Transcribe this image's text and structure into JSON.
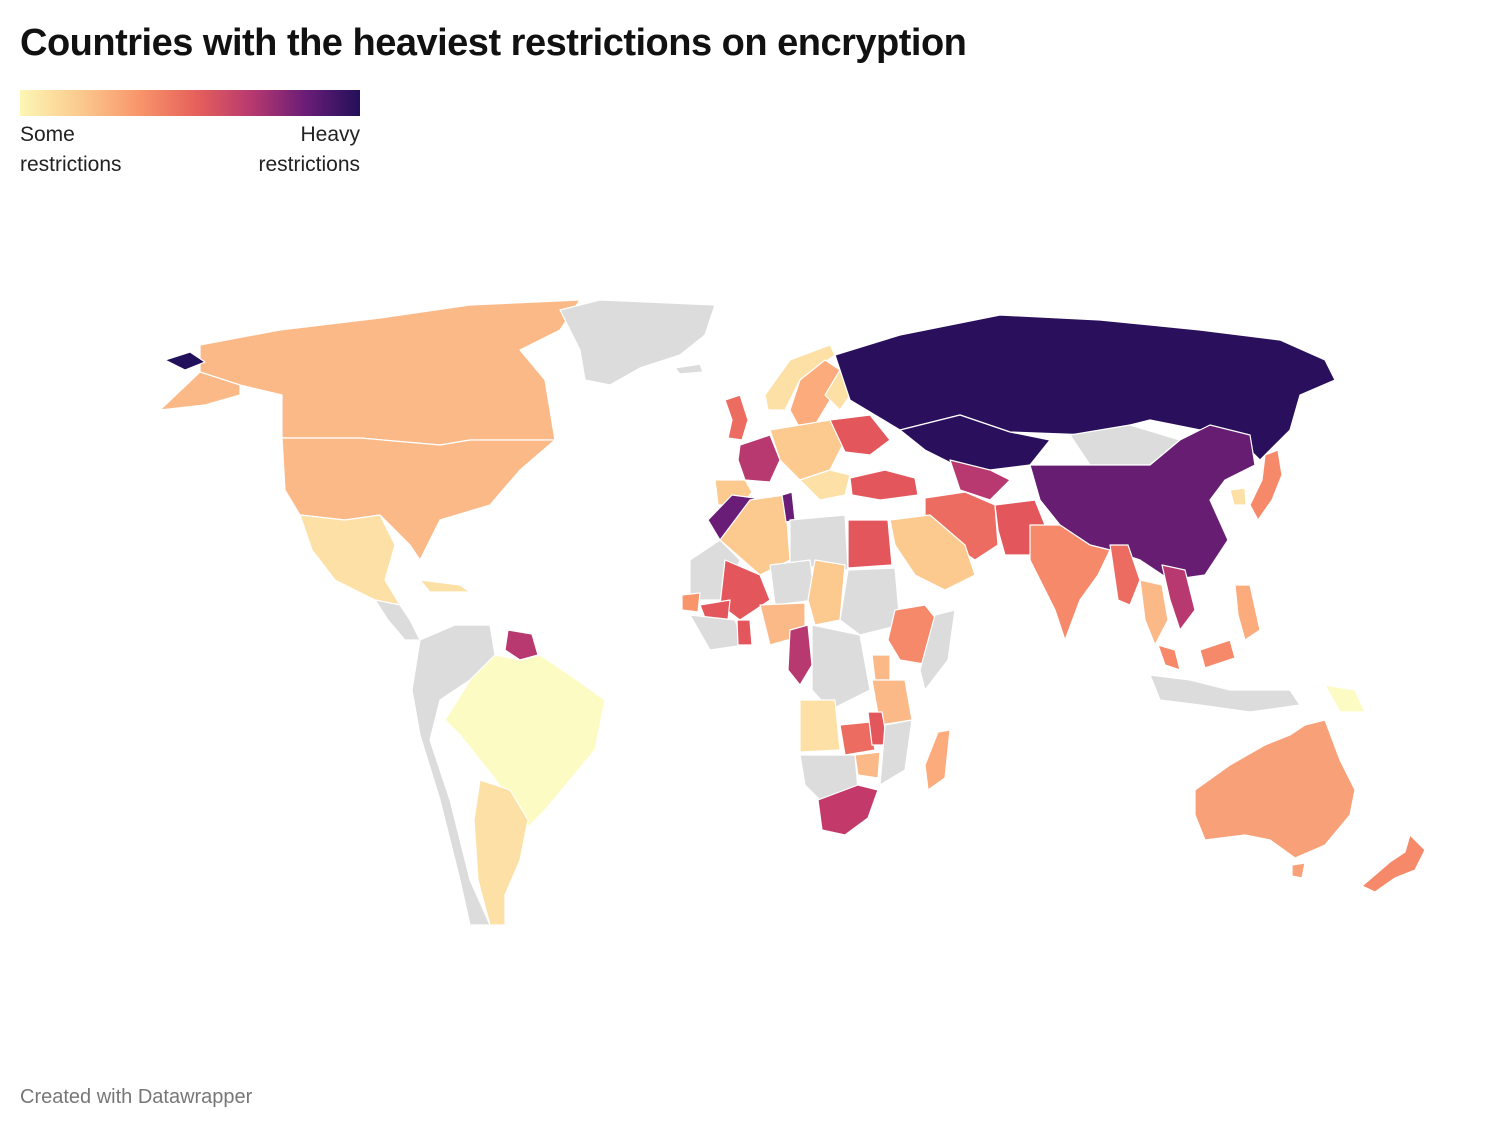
{
  "title": "Countries with the heaviest restrictions on encryption",
  "legend": {
    "low_label_line1": "Some",
    "low_label_line2": "restrictions",
    "high_label_line1": "Heavy",
    "high_label_line2": "restrictions",
    "colors": [
      "#fcf6b4",
      "#fbc98d",
      "#f8956a",
      "#e6605b",
      "#b7396f",
      "#6a1d77",
      "#23105a"
    ]
  },
  "no_data_color": "#dcdcdc",
  "credit": "Created with Datawrapper",
  "regions": [
    {
      "name": "Canada",
      "level": "medium-low",
      "color": "#fbb987"
    },
    {
      "name": "United States",
      "level": "medium-low",
      "color": "#fbb987"
    },
    {
      "name": "Alaska",
      "level": "medium-low",
      "color": "#fbb987"
    },
    {
      "name": "Mexico",
      "level": "low",
      "color": "#fde0a5"
    },
    {
      "name": "Greenland",
      "level": "no data",
      "color": "#dcdcdc"
    },
    {
      "name": "Brazil",
      "level": "lowest",
      "color": "#fdfbc4"
    },
    {
      "name": "Argentina",
      "level": "low",
      "color": "#fde0a5"
    },
    {
      "name": "Russia",
      "level": "highest",
      "color": "#2a105c"
    },
    {
      "name": "Kazakhstan",
      "level": "highest",
      "color": "#2a105c"
    },
    {
      "name": "China",
      "level": "very high",
      "color": "#661d72"
    },
    {
      "name": "Mongolia",
      "level": "no data",
      "color": "#dcdcdc"
    },
    {
      "name": "India",
      "level": "medium",
      "color": "#f6896a"
    },
    {
      "name": "Iran",
      "level": "medium-high",
      "color": "#ec6c61"
    },
    {
      "name": "Turkey",
      "level": "medium-high",
      "color": "#e2565c"
    },
    {
      "name": "Saudi Arabia",
      "level": "low",
      "color": "#fcc98e"
    },
    {
      "name": "Egypt",
      "level": "medium-high",
      "color": "#e2565c"
    },
    {
      "name": "Algeria",
      "level": "low",
      "color": "#fcc98e"
    },
    {
      "name": "Morocco",
      "level": "very high",
      "color": "#6a1d77"
    },
    {
      "name": "Mali",
      "level": "medium-high",
      "color": "#e2565c"
    },
    {
      "name": "Chad",
      "level": "low",
      "color": "#fcc98e"
    },
    {
      "name": "Ethiopia",
      "level": "medium",
      "color": "#f6896a"
    },
    {
      "name": "Cameroon",
      "level": "high",
      "color": "#b7396f"
    },
    {
      "name": "Angola",
      "level": "low",
      "color": "#fde0a5"
    },
    {
      "name": "Zambia",
      "level": "medium-high",
      "color": "#ec6c61"
    },
    {
      "name": "South Africa",
      "level": "high",
      "color": "#c33a6a"
    },
    {
      "name": "Madagascar",
      "level": "medium-low",
      "color": "#fbab7c"
    },
    {
      "name": "Australia",
      "level": "medium",
      "color": "#f8a078"
    },
    {
      "name": "New Zealand",
      "level": "medium",
      "color": "#f6896a"
    },
    {
      "name": "Japan",
      "level": "medium",
      "color": "#f6896a"
    },
    {
      "name": "Vietnam",
      "level": "high",
      "color": "#b7396f"
    },
    {
      "name": "Myanmar",
      "level": "medium-high",
      "color": "#ec6c61"
    },
    {
      "name": "Thailand",
      "level": "medium-low",
      "color": "#fbb987"
    },
    {
      "name": "France",
      "level": "high",
      "color": "#b7396f"
    },
    {
      "name": "Spain",
      "level": "low",
      "color": "#fcc98e"
    },
    {
      "name": "United Kingdom",
      "level": "medium-high",
      "color": "#ec6c61"
    },
    {
      "name": "Sweden",
      "level": "medium-low",
      "color": "#fbab7c"
    },
    {
      "name": "Norway",
      "level": "low",
      "color": "#fde0a5"
    },
    {
      "name": "Ukraine",
      "level": "medium-high",
      "color": "#e2565c"
    }
  ]
}
